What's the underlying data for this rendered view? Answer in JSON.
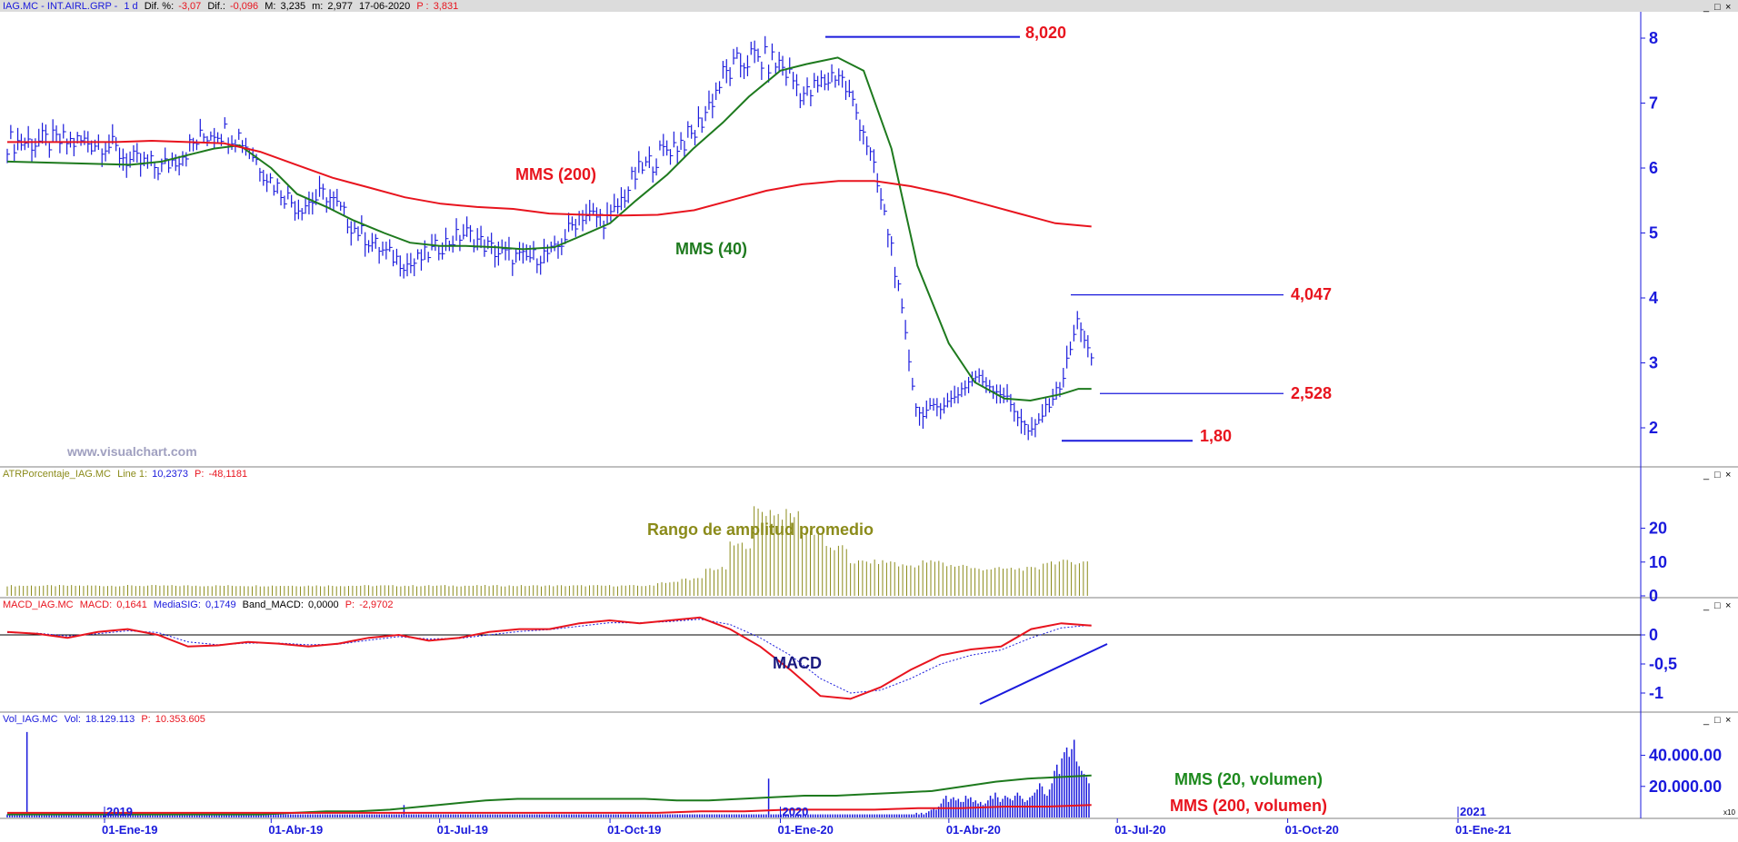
{
  "header": {
    "price": {
      "symbol": "IAG.MC - INT.AIRL.GRP -",
      "period": "1 d",
      "dif_pct_label": "Dif. %:",
      "dif_pct": "-3,07",
      "dif_label": "Dif.:",
      "dif": "-0,096",
      "max_label": "M:",
      "max": "3,235",
      "min_label": "m:",
      "min": "2,977",
      "date": "17-06-2020",
      "p_label": "P :",
      "p": "3,831"
    },
    "atr": {
      "name": "ATRPorcentaje_IAG.MC",
      "line_label": "Line 1:",
      "line": "10,2373",
      "p_label": "P:",
      "p": "-48,1181"
    },
    "macd": {
      "name": "MACD_IAG.MC",
      "macd_label": "MACD:",
      "macd": "0,1641",
      "sig_label": "MediaSIG:",
      "sig": "0,1749",
      "band_label": "Band_MACD:",
      "band": "0,0000",
      "p_label": "P:",
      "p": "-2,9702"
    },
    "vol": {
      "name": "Vol_IAG.MC",
      "vol_label": "Vol:",
      "vol": "18.129.113",
      "p_label": "P:",
      "p": "10.353.605"
    }
  },
  "watermark": "www.visualchart.com",
  "window_controls": [
    "_",
    "□",
    "×"
  ],
  "colors": {
    "price_bars": "#1a1adc",
    "mms200": "#e8141e",
    "mms40": "#1e7a1e",
    "atr": "#8b8b1a",
    "macd": "#e8141e",
    "signal": "#1a1adc",
    "volume": "#1a1adc",
    "annot_red": "#e8141e",
    "annot_green": "#1e8a1e",
    "atr_label": "#8b8b1a",
    "macd_label": "#1a1a80",
    "axis": "#1a1adc"
  },
  "annotations": {
    "mms200": "MMS (200)",
    "mms40": "MMS (40)",
    "level_high": "8,020",
    "level_resist": "4,047",
    "level_support": "2,528",
    "level_low": "1,80",
    "atr_title": "Rango de amplitud promedio",
    "macd_title": "MACD",
    "vol_mms20": "MMS (20, volumen)",
    "vol_mms200": "MMS (200, volumen)",
    "x_multiplier": "x10"
  },
  "chart_data": [
    {
      "type": "ohlc",
      "name": "price",
      "x_dates": [
        "2019-01-01",
        "2019-01-15",
        "2019-02-01",
        "2019-02-15",
        "2019-03-01",
        "2019-03-15",
        "2019-04-01",
        "2019-04-15",
        "2019-05-01",
        "2019-05-15",
        "2019-06-01",
        "2019-06-15",
        "2019-07-01",
        "2019-07-15",
        "2019-08-01",
        "2019-08-15",
        "2019-09-01",
        "2019-09-15",
        "2019-10-01",
        "2019-10-15",
        "2019-11-01",
        "2019-11-15",
        "2019-12-01",
        "2019-12-15",
        "2020-01-01",
        "2020-01-15",
        "2020-02-01",
        "2020-02-15",
        "2020-03-01",
        "2020-03-15",
        "2020-04-01",
        "2020-04-15",
        "2020-05-01",
        "2020-05-15",
        "2020-06-01",
        "2020-06-10",
        "2020-06-17"
      ],
      "close": [
        6.4,
        6.1,
        6.0,
        6.3,
        6.6,
        6.5,
        5.8,
        5.4,
        5.6,
        5.1,
        4.7,
        4.5,
        4.8,
        5.0,
        4.7,
        4.6,
        4.7,
        5.3,
        5.2,
        5.9,
        6.3,
        6.5,
        7.4,
        7.7,
        7.6,
        7.1,
        7.5,
        6.6,
        4.8,
        2.2,
        2.4,
        2.8,
        2.5,
        1.9,
        2.7,
        3.7,
        3.0
      ],
      "mms40": [
        6.1,
        6.05,
        6.1,
        6.2,
        6.3,
        6.35,
        6.0,
        5.6,
        5.4,
        5.2,
        5.0,
        4.85,
        4.8,
        4.8,
        4.78,
        4.75,
        4.78,
        4.95,
        5.15,
        5.5,
        5.9,
        6.3,
        6.7,
        7.1,
        7.5,
        7.6,
        7.7,
        7.5,
        6.3,
        4.5,
        3.3,
        2.7,
        2.45,
        2.42,
        2.52,
        2.6,
        2.6
      ],
      "mms200": [
        6.4,
        6.4,
        6.4,
        6.4,
        6.42,
        6.4,
        6.38,
        6.25,
        6.05,
        5.85,
        5.7,
        5.55,
        5.45,
        5.4,
        5.37,
        5.3,
        5.28,
        5.27,
        5.28,
        5.35,
        5.5,
        5.65,
        5.75,
        5.8,
        5.8,
        5.72,
        5.6,
        5.45,
        5.3,
        5.15,
        5.1
      ],
      "ylim": [
        1.5,
        8.3
      ],
      "yticks": [
        2,
        3,
        4,
        5,
        6,
        7,
        8
      ],
      "levels": [
        8.02,
        4.047,
        2.528,
        1.8
      ]
    },
    {
      "type": "bar",
      "name": "atr_pct",
      "values": [
        3,
        3,
        3,
        3,
        3,
        3,
        3,
        3,
        3,
        3,
        3,
        3,
        3,
        3,
        3,
        3,
        3,
        3,
        3,
        3,
        3,
        3,
        3,
        3,
        3,
        3,
        3,
        4,
        5,
        8,
        15,
        25,
        24,
        19,
        14,
        10,
        10,
        9,
        10,
        9,
        8,
        8,
        8,
        10,
        10
      ],
      "ylim": [
        0,
        27
      ],
      "yticks": [
        0,
        10,
        20
      ]
    },
    {
      "type": "line",
      "name": "macd",
      "macd": [
        0.05,
        0.02,
        -0.05,
        0.05,
        0.1,
        0.0,
        -0.2,
        -0.18,
        -0.12,
        -0.15,
        -0.2,
        -0.15,
        -0.05,
        0.0,
        -0.1,
        -0.05,
        0.05,
        0.1,
        0.1,
        0.2,
        0.25,
        0.2,
        0.25,
        0.3,
        0.1,
        -0.2,
        -0.6,
        -1.05,
        -1.1,
        -0.9,
        -0.6,
        -0.35,
        -0.25,
        -0.2,
        0.1,
        0.2,
        0.16
      ],
      "signal": [
        0.04,
        0.03,
        -0.02,
        0.02,
        0.07,
        0.04,
        -0.12,
        -0.17,
        -0.14,
        -0.14,
        -0.17,
        -0.16,
        -0.09,
        -0.03,
        -0.07,
        -0.06,
        0.0,
        0.06,
        0.09,
        0.15,
        0.21,
        0.21,
        0.23,
        0.27,
        0.18,
        -0.05,
        -0.35,
        -0.75,
        -1.0,
        -0.95,
        -0.75,
        -0.5,
        -0.35,
        -0.26,
        -0.05,
        0.12,
        0.17
      ],
      "ylim": [
        -1.35,
        0.45
      ],
      "yticks": [
        0,
        -0.5,
        -1
      ],
      "ytick_labels": [
        "0",
        "-0,5",
        "-1"
      ]
    },
    {
      "type": "bar",
      "name": "volume",
      "values": [
        2,
        2,
        3,
        2,
        2,
        2,
        2,
        2,
        55,
        3,
        2,
        2,
        2,
        2,
        2,
        2,
        2,
        2,
        2,
        2,
        2,
        2,
        2,
        2,
        2,
        2,
        3,
        2,
        2,
        2,
        2,
        3,
        2,
        2,
        2,
        2,
        2,
        2,
        2,
        2,
        2,
        2,
        2,
        2,
        2,
        2,
        3,
        2,
        2,
        2,
        2,
        2,
        2,
        2,
        2,
        2,
        2,
        2,
        2,
        2,
        2,
        2,
        2,
        2,
        2,
        2,
        2,
        2,
        2,
        2,
        2,
        2,
        2,
        2,
        2,
        2,
        2,
        2,
        2,
        2,
        2,
        2,
        2,
        2,
        2,
        2,
        2,
        2,
        2,
        2,
        2,
        2,
        2,
        2,
        2,
        2,
        2,
        2,
        2,
        2,
        2,
        2,
        2,
        2,
        2,
        2,
        2,
        2,
        2,
        2,
        2,
        2,
        2,
        2,
        2,
        2,
        2,
        2,
        2,
        2,
        2,
        2,
        2,
        2,
        2,
        2,
        2,
        2,
        2,
        2,
        2,
        2,
        2,
        2,
        2,
        2,
        2,
        2,
        2,
        2,
        2,
        2,
        2,
        2,
        2,
        2,
        2,
        2,
        2,
        2,
        2,
        2,
        2,
        2,
        2,
        2,
        2,
        2,
        2,
        2,
        2,
        8,
        2,
        2,
        2,
        2,
        2,
        2,
        2,
        2,
        2,
        2,
        2,
        2,
        2,
        2,
        2,
        2,
        2,
        2,
        2,
        2,
        2,
        2,
        2,
        2,
        2,
        2,
        2,
        2,
        2,
        2,
        2,
        2,
        2,
        2,
        2,
        2,
        2,
        2,
        2,
        2,
        2,
        2,
        2,
        2,
        2,
        2,
        2,
        2,
        2,
        2,
        2,
        2,
        2,
        2,
        2,
        2,
        2,
        2,
        2,
        2,
        2,
        2,
        2,
        2,
        2,
        2,
        2,
        2,
        2,
        2,
        2,
        2,
        2,
        2,
        2,
        2,
        2,
        2,
        2,
        2,
        2,
        2,
        2,
        2,
        2,
        2,
        2,
        2,
        2,
        2,
        2,
        2,
        2,
        2,
        2,
        2,
        2,
        2,
        2,
        2,
        2,
        2,
        2,
        2,
        2,
        2,
        2,
        2,
        2,
        2,
        2,
        2,
        2,
        2,
        2,
        2,
        2,
        2,
        2,
        2,
        2,
        2,
        2,
        2,
        2,
        2,
        2,
        2,
        2,
        2,
        2,
        2,
        2,
        2,
        2,
        2,
        2,
        2,
        2,
        2,
        2,
        2,
        2,
        2,
        2,
        2,
        2,
        25,
        2,
        2,
        2,
        2,
        2,
        2,
        2,
        2,
        2,
        2,
        2,
        2,
        2,
        2,
        2,
        2,
        2,
        2,
        2,
        2,
        2,
        2,
        2,
        2,
        2,
        2,
        2,
        2,
        2,
        2,
        2,
        2,
        2,
        2,
        2,
        2,
        2,
        2,
        2,
        2,
        2,
        2,
        2,
        2,
        2,
        2,
        2,
        2,
        2,
        2,
        2,
        2,
        2,
        2,
        2,
        2,
        2,
        2,
        2,
        3,
        2,
        3,
        2,
        3,
        4,
        5,
        6,
        5,
        7,
        9,
        12,
        14,
        10,
        12,
        13,
        11,
        12,
        10,
        10,
        14,
        12,
        13,
        10,
        11,
        9,
        10,
        8,
        9,
        11,
        14,
        12,
        16,
        13,
        10,
        12,
        14,
        13,
        12,
        11,
        14,
        16,
        14,
        12,
        10,
        11,
        13,
        14,
        16,
        18,
        22,
        20,
        15,
        14,
        18,
        22,
        30,
        34,
        28,
        38,
        42,
        45,
        39,
        44,
        50,
        36,
        33,
        30,
        28,
        26,
        22
      ],
      "mms20_volume": [
        2,
        2,
        2,
        2,
        2,
        2,
        2,
        2,
        2,
        3,
        4,
        4,
        5,
        7,
        9,
        11,
        12,
        12,
        12,
        12,
        12,
        11,
        11,
        12,
        13,
        14,
        14,
        15,
        16,
        17,
        20,
        23,
        25,
        26,
        27
      ],
      "mms200_volume": [
        3,
        3,
        3,
        3,
        3,
        3,
        3,
        3,
        3,
        3,
        3,
        3,
        3,
        3,
        3,
        3,
        4,
        4,
        5,
        5,
        5,
        6,
        6,
        7,
        7,
        8
      ],
      "ylim": [
        0,
        55000000
      ],
      "yticks": [
        20000000,
        40000000
      ],
      "ytick_labels": [
        "20.000.00",
        "40.000.00"
      ]
    }
  ],
  "x_axis": {
    "ticks": [
      "01-Ene-19",
      "01-Abr-19",
      "01-Jul-19",
      "01-Oct-19",
      "01-Ene-20",
      "01-Abr-20",
      "01-Jul-20",
      "01-Oct-20",
      "01-Ene-21"
    ],
    "year_marks": [
      "2019",
      "2020",
      "2021"
    ]
  }
}
